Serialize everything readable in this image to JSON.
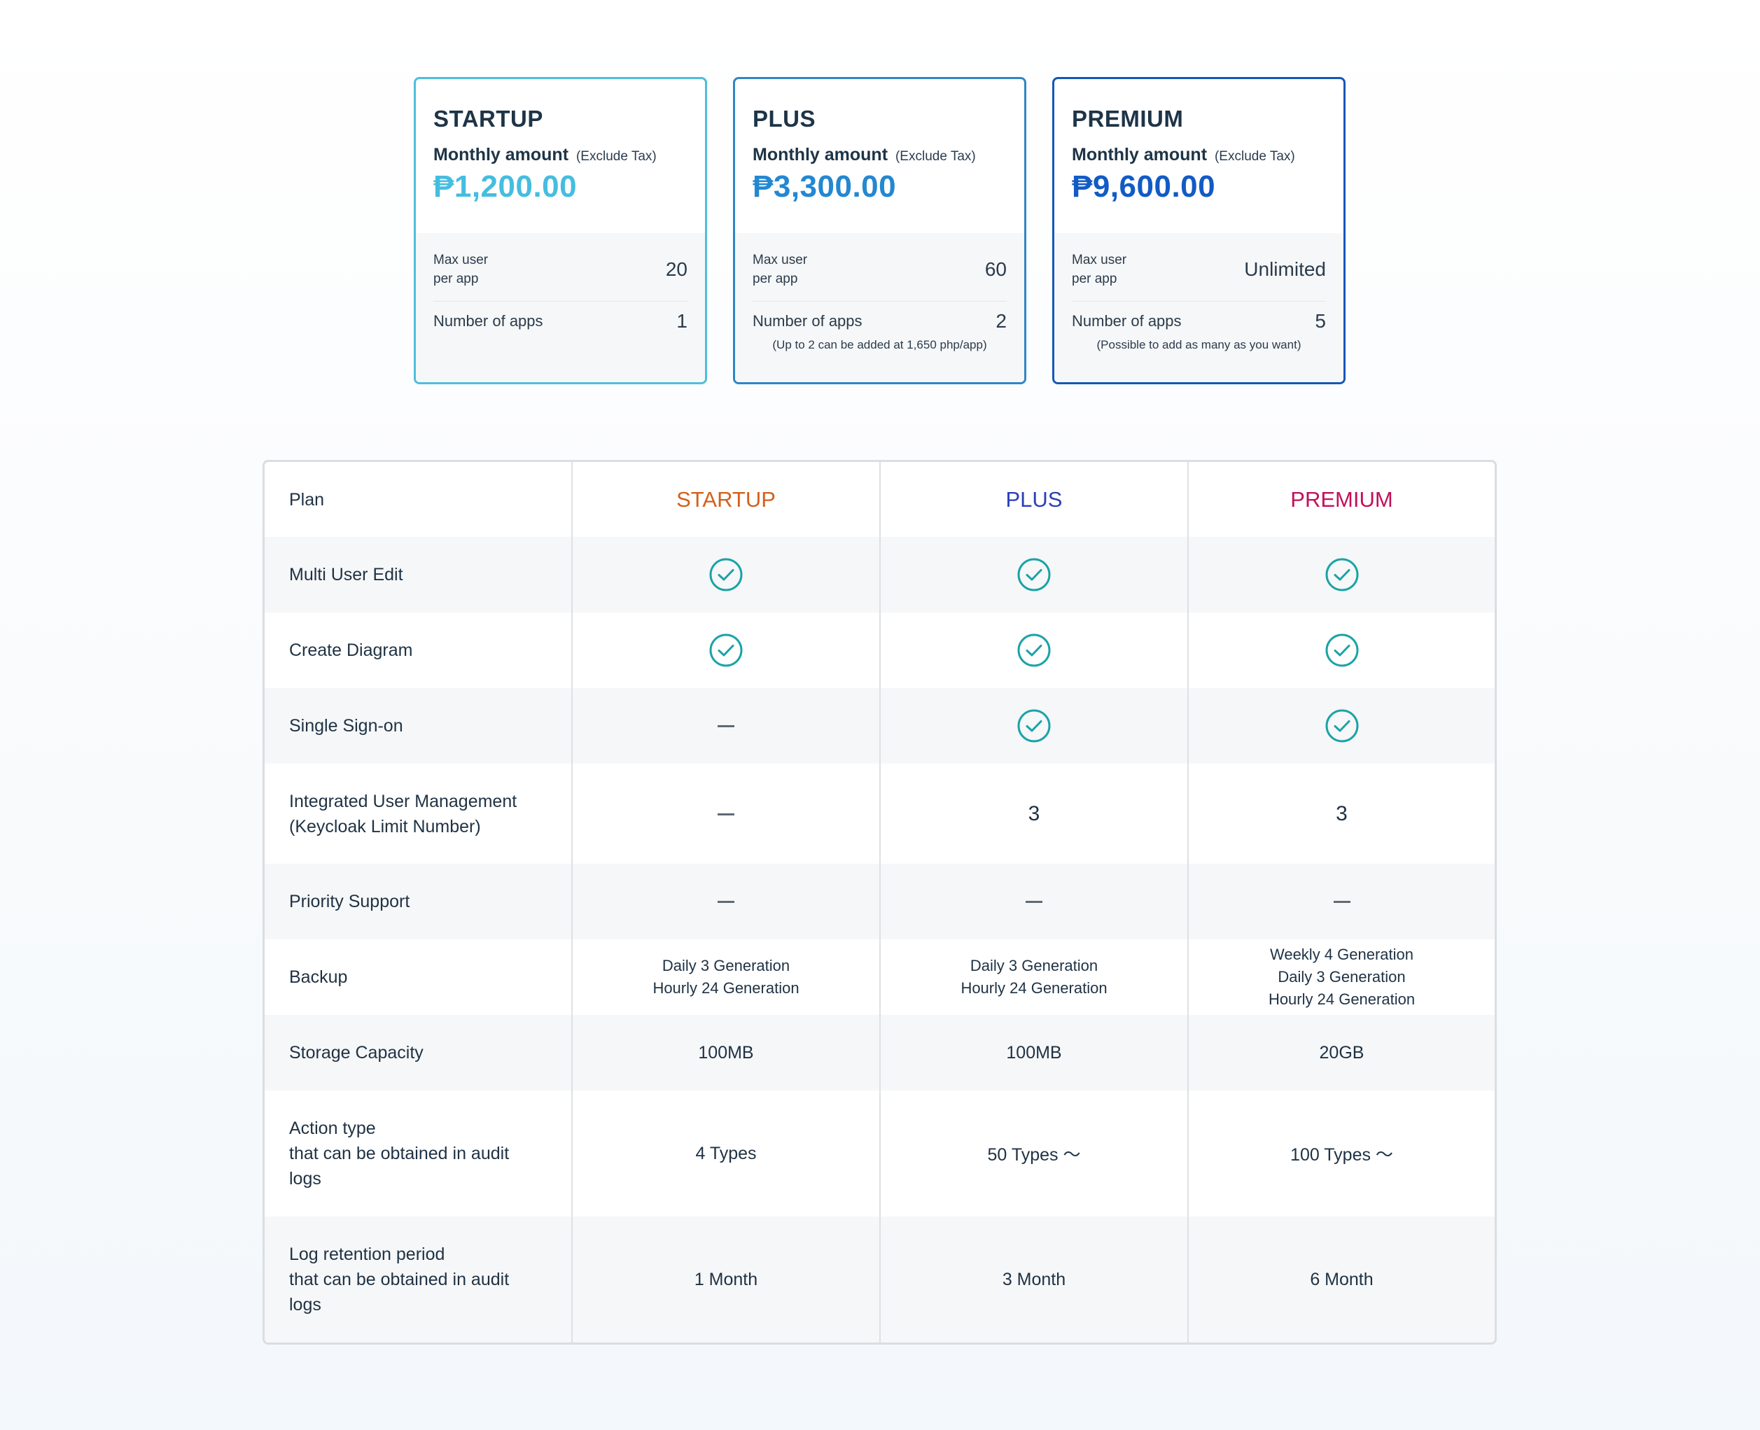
{
  "cards": [
    {
      "title": "STARTUP",
      "monthly_label": "Monthly amount",
      "tax_note": "(Exclude Tax)",
      "price": "₱1,200.00",
      "max_user_label_1": "Max user",
      "max_user_label_2": "per app",
      "max_user_value": "20",
      "apps_label": "Number of apps",
      "apps_value": "1",
      "note": ""
    },
    {
      "title": "PLUS",
      "monthly_label": "Monthly amount",
      "tax_note": "(Exclude Tax)",
      "price": "₱3,300.00",
      "max_user_label_1": "Max user",
      "max_user_label_2": "per app",
      "max_user_value": "60",
      "apps_label": "Number of apps",
      "apps_value": "2",
      "note": "(Up to 2 can be added at 1,650 php/app)"
    },
    {
      "title": "PREMIUM",
      "monthly_label": "Monthly amount",
      "tax_note": "(Exclude Tax)",
      "price": "₱9,600.00",
      "max_user_label_1": "Max user",
      "max_user_label_2": "per app",
      "max_user_value": "Unlimited",
      "apps_label": "Number of apps",
      "apps_value": "5",
      "note": "(Possible to add as many as you want)"
    }
  ],
  "table": {
    "header": {
      "label": "Plan",
      "startup": "STARTUP",
      "plus": "PLUS",
      "premium": "PREMIUM"
    },
    "rows": [
      {
        "label_1": "Multi User Edit",
        "label_2": "",
        "label_3": "",
        "startup": "check",
        "plus": "check",
        "premium": "check"
      },
      {
        "label_1": "Create Diagram",
        "label_2": "",
        "label_3": "",
        "startup": "check",
        "plus": "check",
        "premium": "check"
      },
      {
        "label_1": "Single Sign-on",
        "label_2": "",
        "label_3": "",
        "startup": "dash",
        "plus": "check",
        "premium": "check"
      },
      {
        "label_1": "Integrated User Management",
        "label_2": "(Keycloak Limit Number)",
        "label_3": "",
        "startup": "dash",
        "plus": "3",
        "premium": "3"
      },
      {
        "label_1": "Priority Support",
        "label_2": "",
        "label_3": "",
        "startup": "dash",
        "plus": "dash",
        "premium": "dash"
      },
      {
        "label_1": "Backup",
        "label_2": "",
        "label_3": "",
        "startup_1": "Daily 3 Generation",
        "startup_2": "Hourly 24 Generation",
        "plus_1": "Daily 3 Generation",
        "plus_2": "Hourly 24 Generation",
        "premium_1": "Weekly 4 Generation",
        "premium_2": "Daily 3 Generation",
        "premium_3": "Hourly 24 Generation"
      },
      {
        "label_1": "Storage Capacity",
        "label_2": "",
        "label_3": "",
        "startup": "100MB",
        "plus": "100MB",
        "premium": "20GB"
      },
      {
        "label_1": "Action type",
        "label_2": "that can be obtained in audit",
        "label_3": "logs",
        "startup": "4 Types",
        "plus": "50 Types 〜",
        "premium": "100 Types 〜"
      },
      {
        "label_1": "Log retention period",
        "label_2": "that can be obtained in audit",
        "label_3": "logs",
        "startup": "1 Month",
        "plus": "3 Month",
        "premium": "6 Month"
      }
    ]
  },
  "colors": {
    "startup": "#d4601c",
    "plus": "#2b3fb8",
    "premium": "#c2105a",
    "check": "#1aa3a8"
  },
  "icons": {
    "check": "check-circle-icon",
    "dash": "dash-icon"
  }
}
